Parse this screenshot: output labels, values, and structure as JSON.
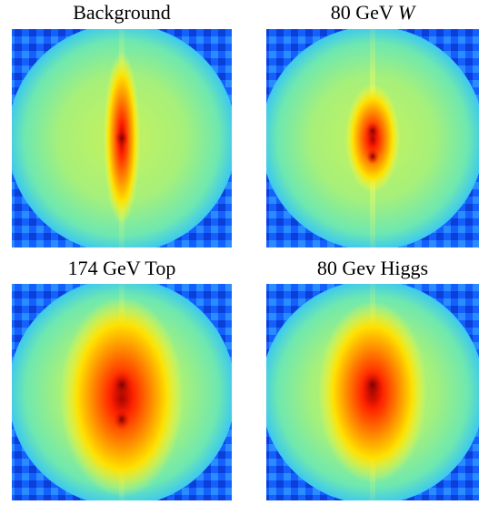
{
  "panels": [
    {
      "title": "Background"
    },
    {
      "title": "80 GeV",
      "title_symbol": "W"
    },
    {
      "title": "174 GeV Top"
    },
    {
      "title": "80 Gev Higgs"
    }
  ]
}
